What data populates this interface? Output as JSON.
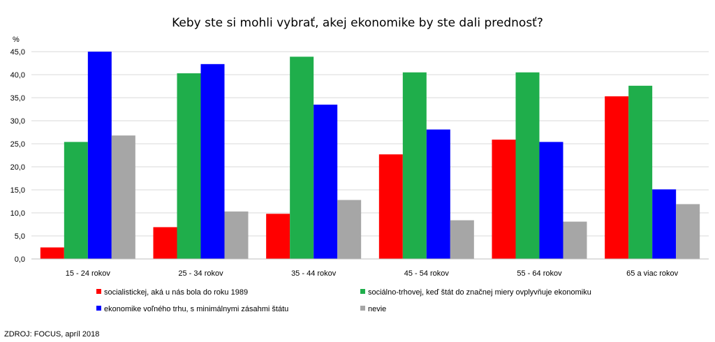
{
  "chart_data": {
    "type": "bar",
    "title": "Keby ste si mohli vybrať, akej ekonomike by ste dali prednosť?",
    "ylabel": "%",
    "ylim": [
      0,
      45
    ],
    "yticks": [
      "0,0",
      "5,0",
      "10,0",
      "15,0",
      "20,0",
      "25,0",
      "30,0",
      "35,0",
      "40,0",
      "45,0"
    ],
    "categories": [
      "15 - 24 rokov",
      "25 - 34 rokov",
      "35 - 44 rokov",
      "45 - 54 rokov",
      "55 - 64 rokov",
      "65 a viac rokov"
    ],
    "series": [
      {
        "name": "socialistickej, aká u nás bola do roku 1989",
        "color": "#ff0000",
        "values": [
          2.5,
          6.9,
          9.8,
          22.7,
          25.9,
          35.3
        ]
      },
      {
        "name": "sociálno-trhovej, keď štát do značnej miery ovplyvňuje ekonomiku",
        "color": "#1fae4b",
        "values": [
          25.4,
          40.3,
          43.9,
          40.5,
          40.5,
          37.6
        ]
      },
      {
        "name": "ekonomike voľného trhu, s minimálnymi zásahmi štátu",
        "color": "#0000ff",
        "values": [
          45.0,
          42.3,
          33.5,
          28.1,
          25.4,
          15.1
        ]
      },
      {
        "name": "nevie",
        "color": "#a6a6a6",
        "values": [
          26.8,
          10.3,
          12.8,
          8.4,
          8.1,
          11.9
        ]
      }
    ],
    "grid": true,
    "legend": "bottom"
  },
  "source": "ZDROJ: FOCUS, apríl 2018"
}
